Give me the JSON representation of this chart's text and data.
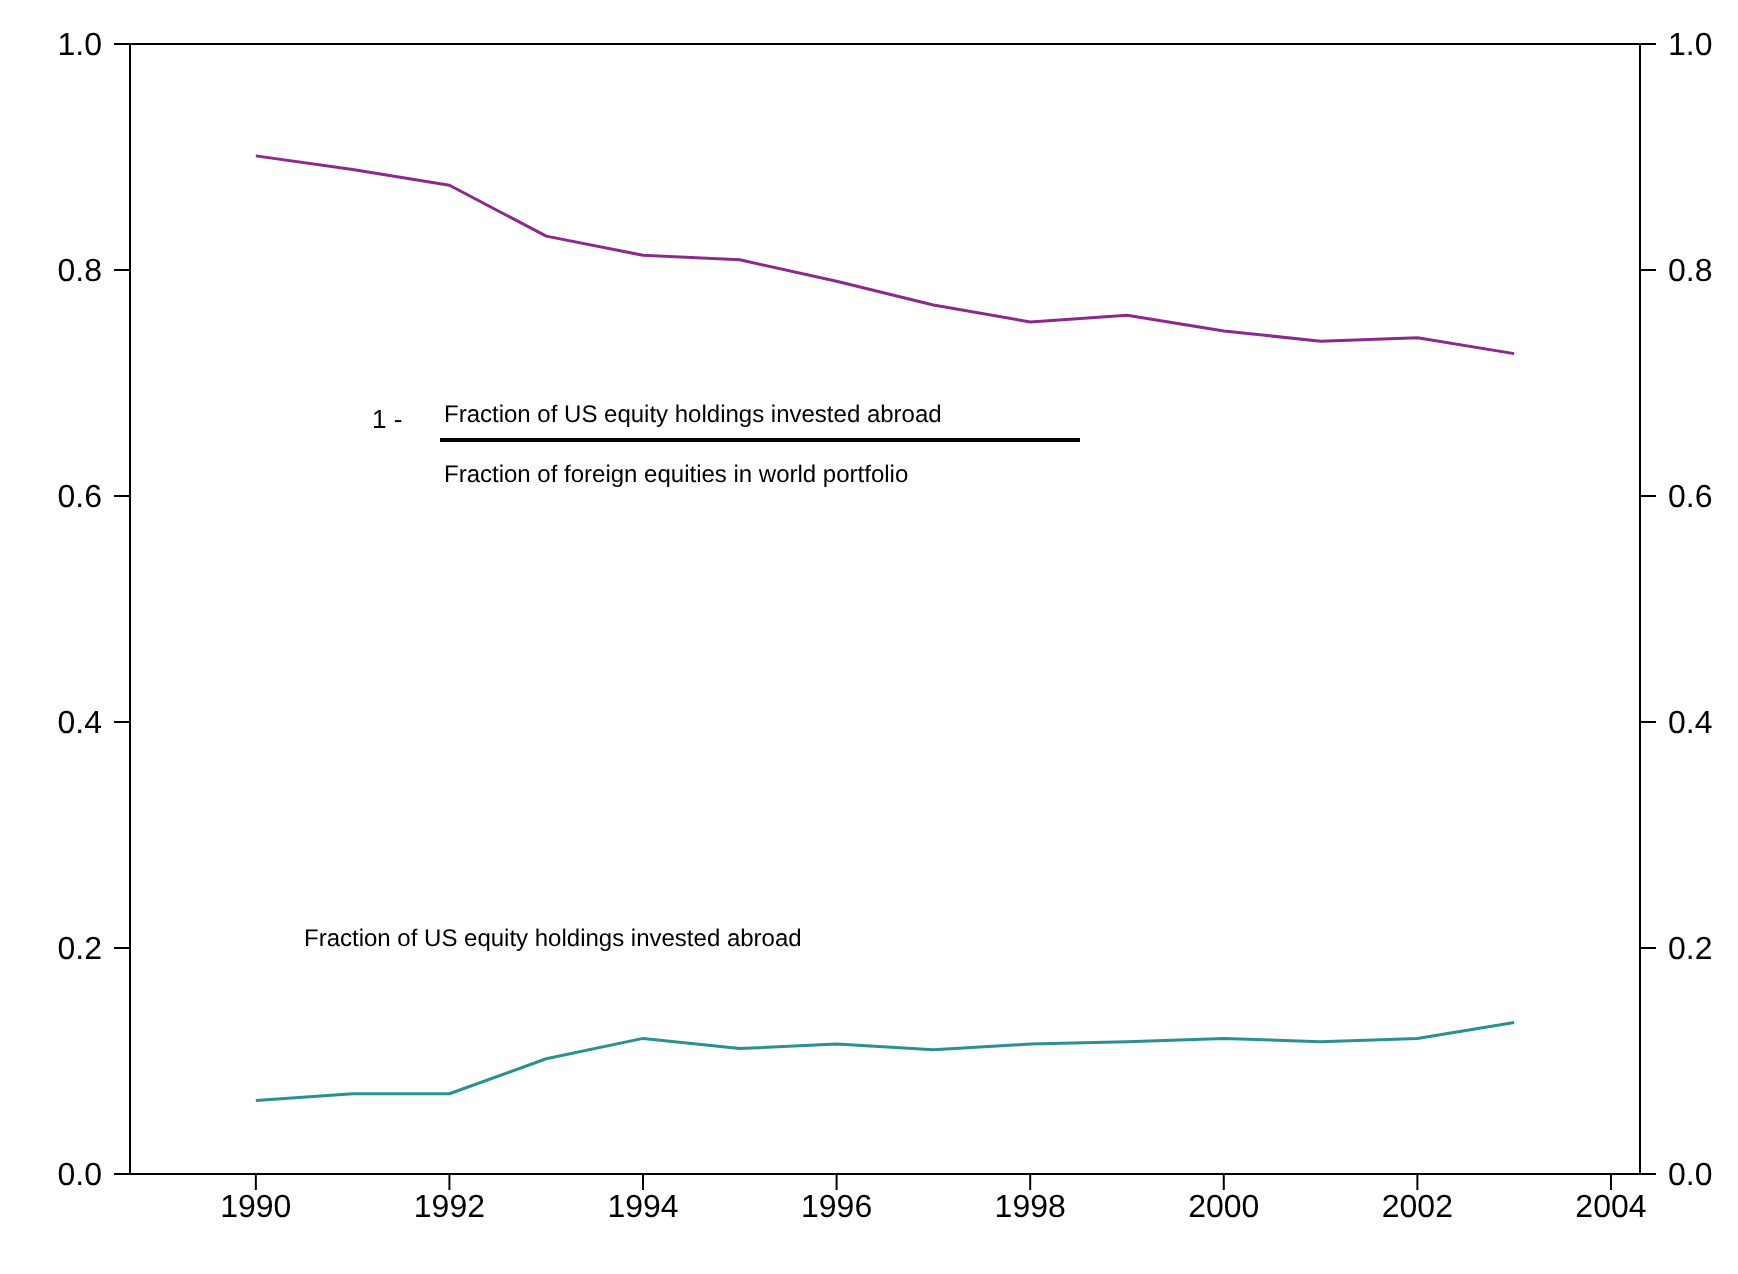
{
  "chart_data": {
    "type": "line",
    "x": [
      1990,
      1991,
      1992,
      1993,
      1994,
      1995,
      1996,
      1997,
      1998,
      1999,
      2000,
      2001,
      2002,
      2003
    ],
    "series": [
      {
        "color": "#8b2a8b",
        "values": [
          0.901,
          0.889,
          0.875,
          0.83,
          0.813,
          0.809,
          0.79,
          0.769,
          0.754,
          0.76,
          0.746,
          0.737,
          0.74,
          0.726
        ]
      },
      {
        "color": "#2a9090",
        "values": [
          0.065,
          0.071,
          0.071,
          0.102,
          0.12,
          0.111,
          0.115,
          0.11,
          0.115,
          0.117,
          0.12,
          0.117,
          0.12,
          0.134
        ]
      }
    ],
    "xlim": [
      1988.7,
      2004.3
    ],
    "xticks": [
      1990,
      1992,
      1994,
      1996,
      1998,
      2000,
      2002,
      2004
    ],
    "ylim": [
      0,
      1
    ],
    "yticks": [
      {
        "value": 0,
        "label": "0.0"
      },
      {
        "value": 0.2,
        "label": "0.2"
      },
      {
        "value": 0.4,
        "label": "0.4"
      },
      {
        "value": 0.6,
        "label": "0.6"
      },
      {
        "value": 0.8,
        "label": "0.8"
      },
      {
        "value": 1,
        "label": "1.0"
      }
    ],
    "y2lim": [
      0,
      1
    ],
    "y2ticks": [
      {
        "value": 0,
        "label": "0.0"
      },
      {
        "value": 0.2,
        "label": "0.2"
      },
      {
        "value": 0.4,
        "label": "0.4"
      },
      {
        "value": 0.6,
        "label": "0.6"
      },
      {
        "value": 0.8,
        "label": "0.8"
      },
      {
        "value": 1,
        "label": "1.0"
      }
    ],
    "annotations": [
      "1 -",
      "Fraction of US equity holdings invested abroad",
      "Fraction of foreign equities in world portfolio",
      "Fraction of US equity holdings invested abroad"
    ],
    "grid": false,
    "marker": "none",
    "line_style": "solid"
  }
}
